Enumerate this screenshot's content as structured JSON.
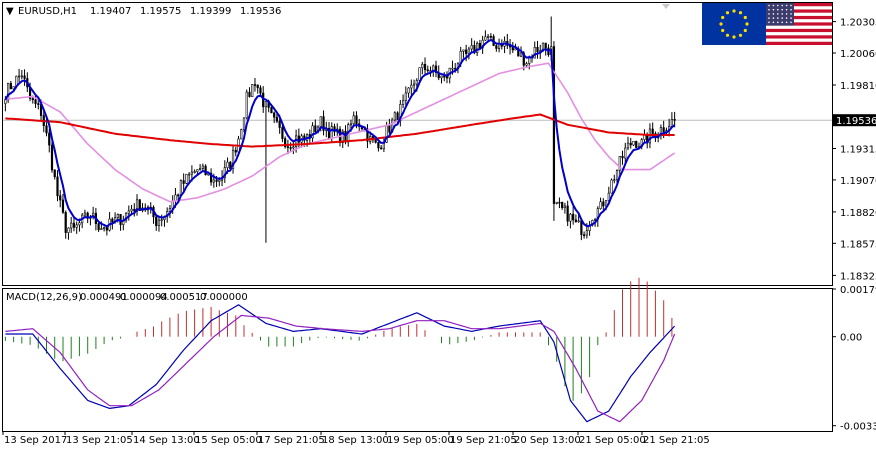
{
  "header": {
    "menu_arrow": "▼",
    "symbol_timeframe": "EURUSD,H1",
    "ohlc": [
      "1.19407",
      "1.19575",
      "1.19399",
      "1.19536"
    ]
  },
  "macd_header": {
    "label": "MACD(12,26,9)",
    "values": [
      "0.000491",
      "0.000094",
      "0.000517",
      "0.000000"
    ]
  },
  "flags": {
    "left": "eu-flag-icon",
    "right": "us-flag-icon"
  },
  "colors": {
    "candle": "#000000",
    "ma_red": "#e00000",
    "ma_blue": "#0000c8",
    "ma_pink": "#e38fe3",
    "macd_main": "#0000b4",
    "macd_signal": "#9020c0",
    "hist_pos": "#c03030",
    "hist_neg": "#208020",
    "current_price_line": "#bdbdbd",
    "current_price_box": "#000000",
    "frame": "#000000"
  },
  "chart_data": [
    {
      "type": "candlestick",
      "title": "EURUSD,H1",
      "ylim": [
        1.1825,
        1.2045
      ],
      "y_ticks": [
        "1.20305",
        "1.20060",
        "1.19810",
        "1.19536",
        "1.19315",
        "1.19070",
        "1.18820",
        "1.18575",
        "1.18325"
      ],
      "current_price": "1.19536",
      "x_tick_labels": [
        "13 Sep 2017",
        "13 Sep 21:05",
        "14 Sep 13:00",
        "15 Sep 05:00",
        "17 Sep 21:05",
        "18 Sep 13:00",
        "19 Sep 05:00",
        "19 Sep 21:05",
        "20 Sep 13:00",
        "21 Sep 05:00",
        "21 Sep 21:05"
      ],
      "close_keypoints": [
        [
          0,
          1.1975
        ],
        [
          3,
          1.1983
        ],
        [
          6,
          1.199
        ],
        [
          9,
          1.197
        ],
        [
          13,
          1.196
        ],
        [
          16,
          1.1932
        ],
        [
          19,
          1.1895
        ],
        [
          22,
          1.187
        ],
        [
          25,
          1.1868
        ],
        [
          28,
          1.1875
        ],
        [
          31,
          1.188
        ],
        [
          34,
          1.1872
        ],
        [
          37,
          1.187
        ],
        [
          40,
          1.1875
        ],
        [
          43,
          1.1878
        ],
        [
          46,
          1.1885
        ],
        [
          49,
          1.1888
        ],
        [
          52,
          1.1884
        ],
        [
          55,
          1.1875
        ],
        [
          58,
          1.188
        ],
        [
          61,
          1.189
        ],
        [
          64,
          1.1902
        ],
        [
          67,
          1.191
        ],
        [
          70,
          1.1915
        ],
        [
          73,
          1.1912
        ],
        [
          76,
          1.1906
        ],
        [
          79,
          1.191
        ],
        [
          82,
          1.192
        ],
        [
          85,
          1.194
        ],
        [
          88,
          1.197
        ],
        [
          91,
          1.1985
        ],
        [
          94,
          1.1968
        ],
        [
          97,
          1.1955
        ],
        [
          100,
          1.1945
        ],
        [
          103,
          1.1935
        ],
        [
          106,
          1.194
        ],
        [
          109,
          1.1938
        ],
        [
          112,
          1.1945
        ],
        [
          115,
          1.1952
        ],
        [
          118,
          1.1945
        ],
        [
          121,
          1.1942
        ],
        [
          124,
          1.194
        ],
        [
          127,
          1.1955
        ],
        [
          130,
          1.195
        ],
        [
          133,
          1.1938
        ],
        [
          136,
          1.1932
        ],
        [
          139,
          1.1945
        ],
        [
          142,
          1.1955
        ],
        [
          145,
          1.1965
        ],
        [
          148,
          1.1978
        ],
        [
          151,
          1.1992
        ],
        [
          154,
          1.1995
        ],
        [
          157,
          1.199
        ],
        [
          160,
          1.1985
        ],
        [
          163,
          1.1995
        ],
        [
          166,
          1.2002
        ],
        [
          169,
          1.2005
        ],
        [
          172,
          1.2012
        ],
        [
          175,
          1.2018
        ],
        [
          178,
          1.2012
        ],
        [
          181,
          1.2015
        ],
        [
          184,
          1.201
        ],
        [
          187,
          1.2005
        ],
        [
          190,
          1.2
        ],
        [
          193,
          1.2008
        ],
        [
          196,
          1.2012
        ],
        [
          199,
          1.2008
        ],
        [
          200,
          1.1885
        ],
        [
          202,
          1.1885
        ],
        [
          205,
          1.188
        ],
        [
          208,
          1.1872
        ],
        [
          211,
          1.1868
        ],
        [
          214,
          1.188
        ],
        [
          217,
          1.1885
        ],
        [
          220,
          1.19
        ],
        [
          223,
          1.1915
        ],
        [
          226,
          1.193
        ],
        [
          229,
          1.1938
        ],
        [
          232,
          1.1935
        ],
        [
          235,
          1.1942
        ],
        [
          238,
          1.1945
        ],
        [
          241,
          1.195
        ],
        [
          244,
          1.1954
        ]
      ],
      "ma_red_keypoints": [
        [
          0,
          1.1955
        ],
        [
          20,
          1.1952
        ],
        [
          40,
          1.1943
        ],
        [
          60,
          1.1938
        ],
        [
          75,
          1.1935
        ],
        [
          90,
          1.1933
        ],
        [
          110,
          1.1935
        ],
        [
          130,
          1.1938
        ],
        [
          150,
          1.1943
        ],
        [
          170,
          1.195
        ],
        [
          185,
          1.1955
        ],
        [
          195,
          1.1958
        ],
        [
          205,
          1.195
        ],
        [
          220,
          1.1944
        ],
        [
          235,
          1.1942
        ],
        [
          244,
          1.1942
        ]
      ],
      "ma_pink_keypoints": [
        [
          0,
          1.197
        ],
        [
          10,
          1.1972
        ],
        [
          20,
          1.196
        ],
        [
          30,
          1.1935
        ],
        [
          40,
          1.1915
        ],
        [
          50,
          1.19
        ],
        [
          60,
          1.189
        ],
        [
          70,
          1.1893
        ],
        [
          80,
          1.19
        ],
        [
          90,
          1.191
        ],
        [
          100,
          1.1925
        ],
        [
          110,
          1.1935
        ],
        [
          120,
          1.194
        ],
        [
          130,
          1.1945
        ],
        [
          140,
          1.195
        ],
        [
          150,
          1.196
        ],
        [
          160,
          1.197
        ],
        [
          170,
          1.198
        ],
        [
          180,
          1.199
        ],
        [
          190,
          1.1995
        ],
        [
          198,
          1.1998
        ],
        [
          205,
          1.1975
        ],
        [
          210,
          1.1955
        ],
        [
          215,
          1.1938
        ],
        [
          220,
          1.1925
        ],
        [
          225,
          1.1915
        ],
        [
          235,
          1.1915
        ],
        [
          244,
          1.1928
        ]
      ],
      "macd_ylim": [
        -0.003551,
        0.001795
      ],
      "macd_y_ticks": [
        "0.001795",
        "0.00",
        "-0.003351"
      ],
      "macd_main_keypoints": [
        [
          0,
          0.0001
        ],
        [
          10,
          0.0001
        ],
        [
          20,
          -0.0012
        ],
        [
          30,
          -0.0024
        ],
        [
          38,
          -0.0027
        ],
        [
          45,
          -0.0026
        ],
        [
          55,
          -0.0018
        ],
        [
          65,
          -0.0005
        ],
        [
          75,
          0.0006
        ],
        [
          85,
          0.0012
        ],
        [
          95,
          0.0005
        ],
        [
          105,
          0.0002
        ],
        [
          115,
          0.0003
        ],
        [
          130,
          0.0001
        ],
        [
          140,
          0.0005
        ],
        [
          150,
          0.0009
        ],
        [
          160,
          0.0004
        ],
        [
          170,
          0.0002
        ],
        [
          180,
          0.0004
        ],
        [
          195,
          0.0006
        ],
        [
          200,
          -0.0002
        ],
        [
          206,
          -0.0024
        ],
        [
          212,
          -0.0032
        ],
        [
          220,
          -0.0028
        ],
        [
          228,
          -0.0015
        ],
        [
          235,
          -0.0006
        ],
        [
          244,
          0.0004
        ]
      ],
      "macd_signal_keypoints": [
        [
          0,
          0.0002
        ],
        [
          10,
          0.0003
        ],
        [
          20,
          -0.0006
        ],
        [
          30,
          -0.002
        ],
        [
          38,
          -0.0026
        ],
        [
          46,
          -0.0026
        ],
        [
          56,
          -0.002
        ],
        [
          66,
          -0.001
        ],
        [
          76,
          0.0
        ],
        [
          86,
          0.0008
        ],
        [
          96,
          0.0007
        ],
        [
          106,
          0.0004
        ],
        [
          116,
          0.0003
        ],
        [
          130,
          0.0002
        ],
        [
          140,
          0.0003
        ],
        [
          150,
          0.0006
        ],
        [
          160,
          0.0006
        ],
        [
          170,
          0.0003
        ],
        [
          180,
          0.0003
        ],
        [
          195,
          0.0005
        ],
        [
          200,
          0.0002
        ],
        [
          208,
          -0.0012
        ],
        [
          216,
          -0.0028
        ],
        [
          224,
          -0.0032
        ],
        [
          232,
          -0.0024
        ],
        [
          240,
          -0.0009
        ],
        [
          244,
          0.0001
        ]
      ]
    }
  ]
}
